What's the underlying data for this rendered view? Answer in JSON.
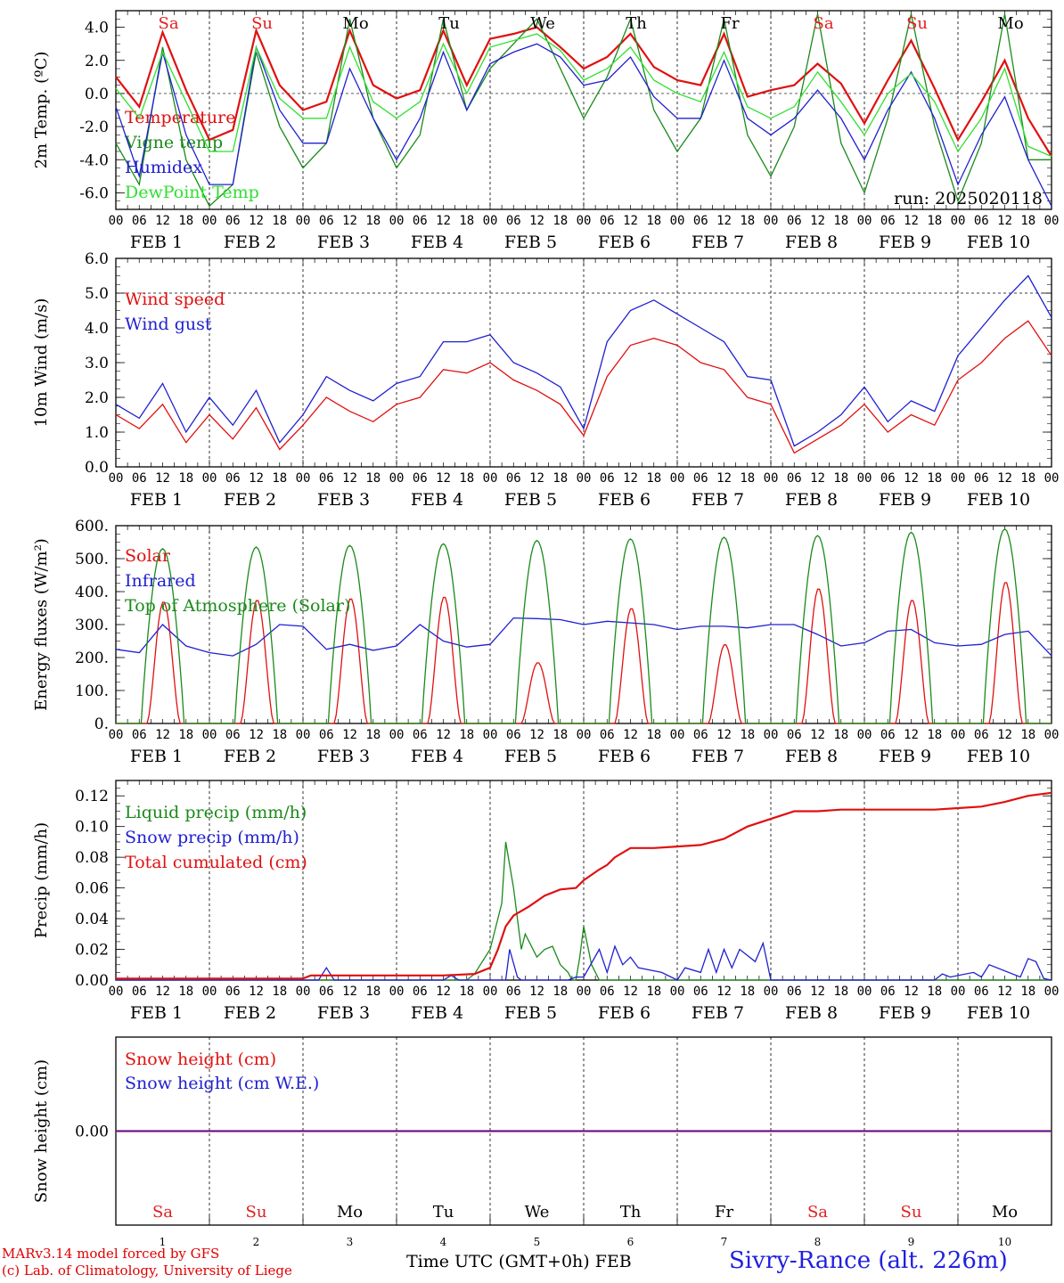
{
  "days": [
    "1",
    "2",
    "3",
    "4",
    "5",
    "6",
    "7",
    "8",
    "9",
    "10"
  ],
  "month": "FEB",
  "weekdays": [
    {
      "label": "Sa",
      "color": "#e02020"
    },
    {
      "label": "Su",
      "color": "#e02020"
    },
    {
      "label": "Mo",
      "color": "#000000"
    },
    {
      "label": "Tu",
      "color": "#000000"
    },
    {
      "label": "We",
      "color": "#000000"
    },
    {
      "label": "Th",
      "color": "#000000"
    },
    {
      "label": "Fr",
      "color": "#000000"
    },
    {
      "label": "Sa",
      "color": "#e02020"
    },
    {
      "label": "Su",
      "color": "#e02020"
    },
    {
      "label": "Mo",
      "color": "#000000"
    }
  ],
  "hour_ticks": [
    "00",
    "06",
    "12",
    "18"
  ],
  "run_label": "run: 2025020118",
  "footer": {
    "model": "MARv3.14 model forced by GFS",
    "credit": "(c) Lab. of Climatology, University of Liege",
    "xlabel": "Time UTC (GMT+0h)",
    "xlabel_month": "FEB",
    "station": "Sivry-Rance (alt. 226m)"
  },
  "chart_data": [
    {
      "type": "line",
      "id": "temp",
      "ylabel": "2m Temp. (ºC)",
      "ylim": [
        -7,
        5
      ],
      "yticks": [
        "4.0",
        "2.0",
        "0.0",
        "-2.0",
        "-4.0",
        "-6.0"
      ],
      "ytick_values": [
        4,
        2,
        0,
        -2,
        -4,
        -6
      ],
      "ref_line": 0,
      "series": [
        {
          "name": "Temperature",
          "color": "#e01010",
          "x": [
            0,
            6,
            12,
            18,
            24,
            30,
            36,
            42,
            48,
            54,
            60,
            66,
            72,
            78,
            84,
            90,
            96,
            102,
            108,
            114,
            120,
            126,
            132,
            138,
            144,
            150,
            156,
            162,
            168,
            174,
            180,
            186,
            192,
            198,
            204,
            210,
            216,
            222,
            228,
            234,
            240
          ],
          "values": [
            1.0,
            -0.8,
            3.7,
            0.2,
            -2.8,
            -2.2,
            3.8,
            0.5,
            -1.0,
            -0.5,
            3.8,
            0.5,
            -0.3,
            0.2,
            3.8,
            0.5,
            3.3,
            3.6,
            4.0,
            2.8,
            1.5,
            2.2,
            3.6,
            1.6,
            0.8,
            0.5,
            3.6,
            -0.2,
            0.2,
            0.5,
            1.8,
            0.6,
            -1.8,
            0.8,
            3.2,
            0.3,
            -2.8,
            -0.5,
            2.0,
            -1.5,
            -3.8
          ]
        },
        {
          "name": "Vigne temp",
          "color": "#1a8a1a",
          "x": [
            0,
            6,
            12,
            18,
            24,
            30,
            36,
            42,
            48,
            54,
            60,
            66,
            72,
            78,
            84,
            90,
            96,
            102,
            108,
            114,
            120,
            126,
            132,
            138,
            144,
            150,
            156,
            162,
            168,
            174,
            180,
            186,
            192,
            198,
            204,
            210,
            216,
            222,
            228,
            234,
            240
          ],
          "values": [
            -3.0,
            -5.5,
            2.8,
            -4.0,
            -6.8,
            -5.5,
            2.5,
            -2.0,
            -4.5,
            -3.0,
            4.5,
            -1.5,
            -4.5,
            -2.5,
            4.5,
            -1.0,
            1.5,
            3.0,
            4.5,
            1.5,
            -1.5,
            1.0,
            4.5,
            -1.0,
            -3.5,
            -1.5,
            4.5,
            -2.5,
            -5.0,
            -2.0,
            4.8,
            -3.0,
            -6.0,
            -1.5,
            4.8,
            -2.0,
            -6.5,
            -3.0,
            4.8,
            -4.0,
            -4.0
          ]
        },
        {
          "name": "Humidex",
          "color": "#2020d0",
          "x": [
            0,
            6,
            12,
            18,
            24,
            30,
            36,
            42,
            48,
            54,
            60,
            66,
            72,
            78,
            84,
            90,
            96,
            102,
            108,
            114,
            120,
            126,
            132,
            138,
            144,
            150,
            156,
            162,
            168,
            174,
            180,
            186,
            192,
            198,
            204,
            210,
            216,
            222,
            228,
            234,
            240
          ],
          "values": [
            -0.8,
            -5.0,
            2.5,
            -2.5,
            -5.5,
            -5.5,
            2.8,
            -1.0,
            -3.0,
            -3.0,
            1.5,
            -1.5,
            -4.0,
            -1.5,
            2.5,
            -1.0,
            1.8,
            2.5,
            3.0,
            2.2,
            0.5,
            0.8,
            2.2,
            -0.2,
            -1.5,
            -1.5,
            2.0,
            -1.5,
            -2.5,
            -1.5,
            0.2,
            -1.5,
            -4.0,
            -1.0,
            1.3,
            -1.5,
            -5.5,
            -2.5,
            -0.2,
            -4.0,
            -6.8
          ]
        },
        {
          "name": "DewPoint Temp",
          "color": "#30e030",
          "x": [
            0,
            6,
            12,
            18,
            24,
            30,
            36,
            42,
            48,
            54,
            60,
            66,
            72,
            78,
            84,
            90,
            96,
            102,
            108,
            114,
            120,
            126,
            132,
            138,
            144,
            150,
            156,
            162,
            168,
            174,
            180,
            186,
            192,
            198,
            204,
            210,
            216,
            222,
            228,
            234,
            240
          ],
          "values": [
            0.3,
            -1.5,
            2.5,
            -0.5,
            -3.5,
            -3.5,
            2.8,
            -0.3,
            -1.5,
            -1.5,
            2.8,
            -0.5,
            -1.5,
            -0.5,
            3.0,
            0.0,
            2.8,
            3.2,
            3.6,
            2.6,
            0.8,
            1.5,
            2.8,
            0.8,
            0.0,
            -0.5,
            2.5,
            -0.8,
            -1.5,
            -0.8,
            1.3,
            -0.5,
            -2.5,
            0.0,
            1.2,
            -0.5,
            -3.5,
            -1.5,
            1.5,
            -3.2,
            -3.8
          ]
        }
      ]
    },
    {
      "type": "line",
      "id": "wind",
      "ylabel": "10m Wind (m/s)",
      "ylim": [
        0,
        6
      ],
      "yticks": [
        "6.0",
        "5.0",
        "4.0",
        "3.0",
        "2.0",
        "1.0",
        "0.0"
      ],
      "ytick_values": [
        6,
        5,
        4,
        3,
        2,
        1,
        0
      ],
      "ref_line": 5,
      "series": [
        {
          "name": "Wind speed",
          "color": "#e01010",
          "x": [
            0,
            6,
            12,
            18,
            24,
            30,
            36,
            42,
            48,
            54,
            60,
            66,
            72,
            78,
            84,
            90,
            96,
            102,
            108,
            114,
            120,
            126,
            132,
            138,
            144,
            150,
            156,
            162,
            168,
            174,
            180,
            186,
            192,
            198,
            204,
            210,
            216,
            222,
            228,
            234,
            240
          ],
          "values": [
            1.5,
            1.1,
            1.8,
            0.7,
            1.5,
            0.8,
            1.7,
            0.5,
            1.2,
            2.0,
            1.6,
            1.3,
            1.8,
            2.0,
            2.8,
            2.7,
            3.0,
            2.5,
            2.2,
            1.8,
            0.9,
            2.6,
            3.5,
            3.7,
            3.5,
            3.0,
            2.8,
            2.0,
            1.8,
            0.4,
            0.8,
            1.2,
            1.8,
            1.0,
            1.5,
            1.2,
            2.5,
            3.0,
            3.7,
            4.2,
            3.2
          ]
        },
        {
          "name": "Wind gust",
          "color": "#2020d0",
          "x": [
            0,
            6,
            12,
            18,
            24,
            30,
            36,
            42,
            48,
            54,
            60,
            66,
            72,
            78,
            84,
            90,
            96,
            102,
            108,
            114,
            120,
            126,
            132,
            138,
            144,
            150,
            156,
            162,
            168,
            174,
            180,
            186,
            192,
            198,
            204,
            210,
            216,
            222,
            228,
            234,
            240
          ],
          "values": [
            1.8,
            1.4,
            2.4,
            1.0,
            2.0,
            1.2,
            2.2,
            0.7,
            1.5,
            2.6,
            2.2,
            1.9,
            2.4,
            2.6,
            3.6,
            3.6,
            3.8,
            3.0,
            2.7,
            2.3,
            1.1,
            3.6,
            4.5,
            4.8,
            4.4,
            4.0,
            3.6,
            2.6,
            2.5,
            0.6,
            1.0,
            1.5,
            2.3,
            1.3,
            1.9,
            1.6,
            3.2,
            4.0,
            4.8,
            5.5,
            4.3
          ]
        }
      ]
    },
    {
      "type": "line",
      "id": "energy",
      "ylabel": "Energy fluxes (W/m²)",
      "ylim": [
        0,
        600
      ],
      "yticks": [
        "600.",
        "500.",
        "400.",
        "300.",
        "200.",
        "100.",
        "0."
      ],
      "ytick_values": [
        600,
        500,
        400,
        300,
        200,
        100,
        0
      ],
      "series": [
        {
          "name": "Solar",
          "color": "#e01010",
          "peaks": [
            370,
            375,
            380,
            385,
            185,
            350,
            240,
            410,
            375,
            430
          ]
        },
        {
          "name": "Infrared",
          "color": "#2020d0",
          "x": [
            0,
            6,
            12,
            18,
            24,
            30,
            36,
            42,
            48,
            54,
            60,
            66,
            72,
            78,
            84,
            90,
            96,
            102,
            108,
            114,
            120,
            126,
            132,
            138,
            144,
            150,
            156,
            162,
            168,
            174,
            180,
            186,
            192,
            198,
            204,
            210,
            216,
            222,
            228,
            234,
            240
          ],
          "values": [
            225,
            215,
            300,
            235,
            215,
            205,
            240,
            300,
            295,
            225,
            240,
            222,
            235,
            300,
            250,
            232,
            240,
            320,
            318,
            315,
            300,
            310,
            305,
            300,
            285,
            295,
            295,
            290,
            300,
            300,
            270,
            235,
            245,
            280,
            285,
            245,
            235,
            240,
            270,
            280,
            205
          ]
        },
        {
          "name": "Top of Atmosphere (Solar)",
          "color": "#1a8a1a",
          "peaks": [
            530,
            535,
            540,
            545,
            555,
            560,
            565,
            570,
            580,
            590
          ]
        }
      ]
    },
    {
      "type": "line",
      "id": "precip",
      "ylabel": "Precip (mm/h)",
      "ylim": [
        0,
        0.13
      ],
      "yticks": [
        "0.12",
        "0.10",
        "0.08",
        "0.06",
        "0.04",
        "0.02",
        "0.00"
      ],
      "ytick_values": [
        0.12,
        0.1,
        0.08,
        0.06,
        0.04,
        0.02,
        0
      ],
      "series": [
        {
          "name": "Liquid precip (mm/h)",
          "color": "#1a8a1a",
          "x": [
            0,
            90,
            92,
            96,
            99,
            100,
            102,
            104,
            105,
            108,
            110,
            112,
            114,
            116,
            117,
            118,
            119,
            120,
            122,
            124,
            126,
            130,
            136,
            240
          ],
          "values": [
            0,
            0,
            0.004,
            0.02,
            0.05,
            0.09,
            0.06,
            0.02,
            0.03,
            0.015,
            0.02,
            0.022,
            0.01,
            0.005,
            0,
            0,
            0.015,
            0.035,
            0.01,
            0,
            0,
            0,
            0,
            0
          ]
        },
        {
          "name": "Snow precip (mm/h)",
          "color": "#2020d0",
          "x": [
            0,
            48,
            52,
            54,
            56,
            60,
            84,
            86,
            88,
            100,
            101,
            103,
            104,
            116,
            118,
            120,
            124,
            126,
            128,
            130,
            132,
            134,
            140,
            144,
            146,
            150,
            152,
            154,
            156,
            158,
            160,
            164,
            166,
            168,
            174,
            210,
            212,
            214,
            220,
            222,
            224,
            232,
            234,
            236,
            238,
            240
          ],
          "values": [
            0,
            0,
            0,
            0.008,
            0,
            0,
            0,
            0.003,
            0,
            0,
            0.02,
            0.002,
            0,
            0,
            0.002,
            0.002,
            0.02,
            0.005,
            0.022,
            0.01,
            0.015,
            0.008,
            0.005,
            0,
            0.008,
            0.005,
            0.02,
            0.005,
            0.02,
            0.008,
            0.02,
            0.012,
            0.024,
            0,
            0,
            0,
            0.004,
            0.002,
            0.005,
            0.002,
            0.01,
            0.002,
            0.014,
            0.012,
            0.001,
            0
          ]
        },
        {
          "name": "Total cumulated (cm)",
          "color": "#e01010",
          "x": [
            0,
            48,
            50,
            84,
            92,
            96,
            98,
            100,
            102,
            106,
            110,
            114,
            118,
            120,
            124,
            126,
            128,
            132,
            138,
            144,
            150,
            156,
            162,
            168,
            174,
            180,
            186,
            192,
            198,
            204,
            210,
            216,
            222,
            228,
            234,
            240
          ],
          "values": [
            0.001,
            0.001,
            0.003,
            0.003,
            0.004,
            0.008,
            0.02,
            0.035,
            0.042,
            0.048,
            0.055,
            0.059,
            0.06,
            0.065,
            0.072,
            0.075,
            0.08,
            0.086,
            0.086,
            0.087,
            0.088,
            0.092,
            0.1,
            0.105,
            0.11,
            0.11,
            0.111,
            0.111,
            0.111,
            0.111,
            0.111,
            0.112,
            0.113,
            0.116,
            0.12,
            0.122
          ]
        }
      ]
    },
    {
      "type": "line",
      "id": "snow",
      "ylabel": "Snow height (cm)",
      "ylim": [
        -1,
        1
      ],
      "yticks": [
        "0.00"
      ],
      "ytick_values": [
        0
      ],
      "series": [
        {
          "name": "Snow height (cm)",
          "color": "#e01010",
          "x": [
            0,
            240
          ],
          "values": [
            0,
            0
          ]
        },
        {
          "name": "Snow height (cm W.E.)",
          "color": "#2020d0",
          "x": [
            0,
            240
          ],
          "values": [
            0,
            0
          ]
        }
      ]
    }
  ]
}
